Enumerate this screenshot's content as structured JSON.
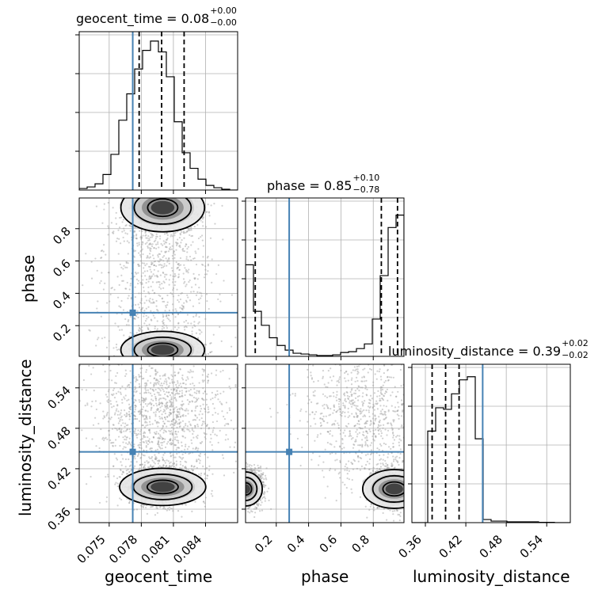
{
  "chart_data": {
    "type": "corner",
    "parameters": [
      "geocent_time",
      "phase",
      "luminosity_distance"
    ],
    "titles": [
      {
        "param": "geocent_time",
        "text": "geocent_time = 0.08",
        "plus": "+0.00",
        "minus": "−0.00"
      },
      {
        "param": "phase",
        "text": "phase = 0.85",
        "plus": "+0.10",
        "minus": "−0.78"
      },
      {
        "param": "luminosity_distance",
        "text": "luminosity_distance = 0.39",
        "plus": "+0.02",
        "minus": "−0.02"
      }
    ],
    "axis_labels": [
      "geocent_time",
      "phase",
      "luminosity_distance"
    ],
    "ranges": {
      "geocent_time": [
        0.0722,
        0.087
      ],
      "phase": [
        0.01,
        0.99
      ],
      "luminosity_distance": [
        0.34,
        0.575
      ]
    },
    "ticks": {
      "geocent_time": [
        "0.075",
        "0.078",
        "0.081",
        "0.084"
      ],
      "phase": [
        "0.2",
        "0.4",
        "0.6",
        "0.8"
      ],
      "luminosity_distance": [
        "0.36",
        "0.42",
        "0.48",
        "0.54"
      ]
    },
    "tick_values": {
      "geocent_time": [
        0.075,
        0.078,
        0.081,
        0.084
      ],
      "phase": [
        0.2,
        0.4,
        0.6,
        0.8
      ],
      "luminosity_distance": [
        0.36,
        0.42,
        0.48,
        0.54
      ]
    },
    "truths": {
      "geocent_time": 0.0772,
      "phase": 0.28,
      "luminosity_distance": 0.445
    },
    "truth_color": "#4682b4",
    "quantiles": {
      "geocent_time": [
        0.0778,
        0.0799,
        0.082
      ],
      "phase": [
        0.07,
        0.85,
        0.95
      ],
      "luminosity_distance": [
        0.37,
        0.39,
        0.41
      ]
    },
    "histograms": {
      "geocent_time": {
        "edges_range": [
          0.0722,
          0.087
        ],
        "bins": 20,
        "counts": [
          0.01,
          0.02,
          0.04,
          0.1,
          0.23,
          0.45,
          0.62,
          0.78,
          0.9,
          0.96,
          0.89,
          0.73,
          0.44,
          0.24,
          0.14,
          0.07,
          0.03,
          0.015,
          0.005,
          0.0
        ]
      },
      "phase": {
        "edges_range": [
          0.01,
          0.99
        ],
        "bins": 20,
        "counts": [
          0.59,
          0.29,
          0.2,
          0.12,
          0.07,
          0.04,
          0.02,
          0.015,
          0.01,
          0.005,
          0.005,
          0.01,
          0.025,
          0.03,
          0.05,
          0.08,
          0.24,
          0.52,
          0.83,
          0.91
        ]
      },
      "luminosity_distance": {
        "edges_range": [
          0.34,
          0.575
        ],
        "bins": 20,
        "counts": [
          0.0,
          0.0,
          0.59,
          0.74,
          0.73,
          0.83,
          0.92,
          0.94,
          0.54,
          0.02,
          0.01,
          0.01,
          0.005,
          0.005,
          0.005,
          0.005,
          0.002,
          0.002,
          0.0,
          0.0
        ]
      }
    },
    "color": "#000000",
    "grid": true
  }
}
